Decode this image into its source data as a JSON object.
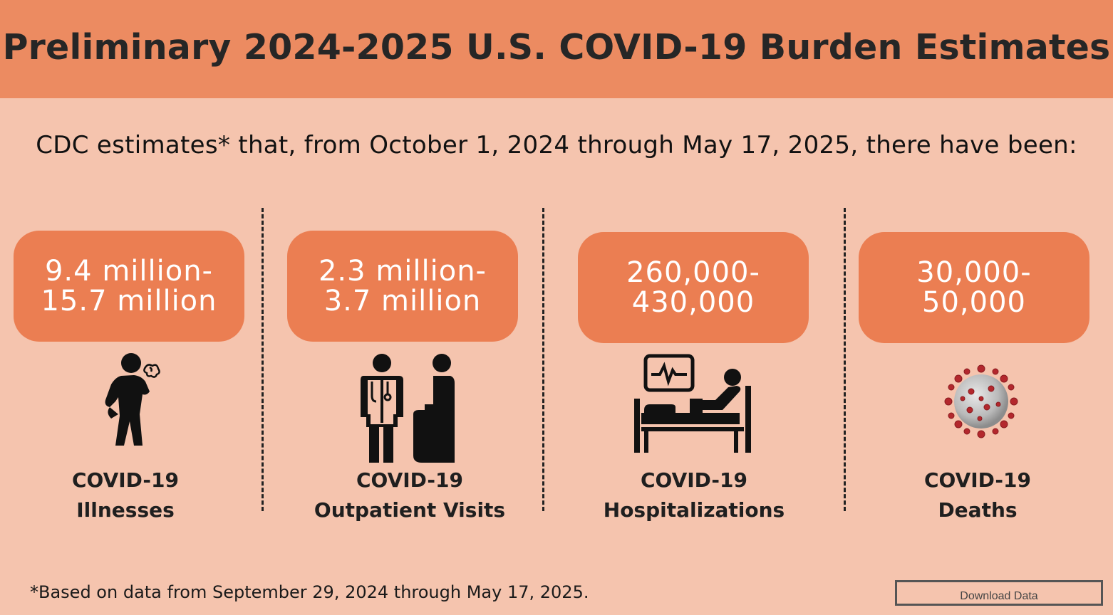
{
  "header": {
    "title": "Preliminary 2024-2025 U.S. COVID-19 Burden Estimates"
  },
  "subtitle": "CDC estimates* that, from October 1, 2024 through May 17, 2025, there have been:",
  "stats": [
    {
      "value_line1": "9.4 million-",
      "value_line2": "15.7 million",
      "label_line1": "COVID-19",
      "label_line2": "Illnesses",
      "icon": "coughing-person-icon"
    },
    {
      "value_line1": "2.3 million-",
      "value_line2": "3.7 million",
      "label_line1": "COVID-19",
      "label_line2": "Outpatient Visits",
      "icon": "doctor-patient-icon"
    },
    {
      "value_line1": "260,000-",
      "value_line2": "430,000",
      "label_line1": "COVID-19",
      "label_line2": "Hospitalizations",
      "icon": "hospital-bed-icon"
    },
    {
      "value_line1": "30,000-",
      "value_line2": "50,000",
      "label_line1": "COVID-19",
      "label_line2": "Deaths",
      "icon": "virus-icon"
    }
  ],
  "footnote": "*Based on data from September 29, 2024 through May 17, 2025.",
  "download_label": "Download Data",
  "colors": {
    "background": "#f5c4ae",
    "header": "#ec8b61",
    "stat_box": "#eb7e52",
    "virus": "#b3282d"
  }
}
